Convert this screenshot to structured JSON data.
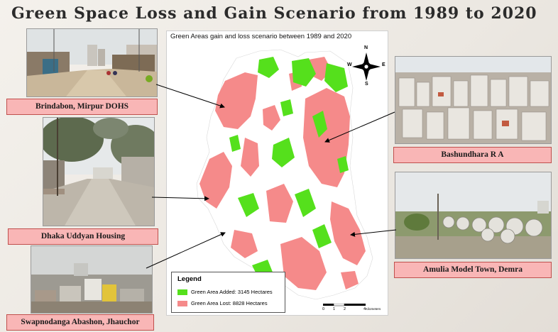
{
  "slide": {
    "title": "Green Space Loss and Gain Scenario from 1989 to 2020"
  },
  "map": {
    "title": "Green Areas gain and loss scenario between 1989 and 2020",
    "north_arrow": {
      "n": "N",
      "s": "S",
      "e": "E",
      "w": "W"
    },
    "legend": {
      "title": "Legend",
      "items": [
        {
          "label": "Green Area Added: 3145 Hectares",
          "color": "#55e01c"
        },
        {
          "label": "Green Area Lost: 8828 Hectares",
          "color": "#f58a8a"
        }
      ]
    },
    "scale": {
      "ticks": [
        "0",
        "1",
        "2",
        "4"
      ],
      "unit": "Kilometers"
    }
  },
  "locations": [
    {
      "caption": "Brindabon, Mirpur DOHS"
    },
    {
      "caption": "Dhaka Uddyan Housing"
    },
    {
      "caption": "Swapnodanga Abashon, Jhauchor"
    },
    {
      "caption": "Bashundhara R A"
    },
    {
      "caption": "Amulia Model Town, Demra"
    }
  ],
  "colors": {
    "caption_fill": "#f9b6b6",
    "caption_border": "#c0504d",
    "green_added": "#55e01c",
    "green_lost": "#f58a8a"
  }
}
